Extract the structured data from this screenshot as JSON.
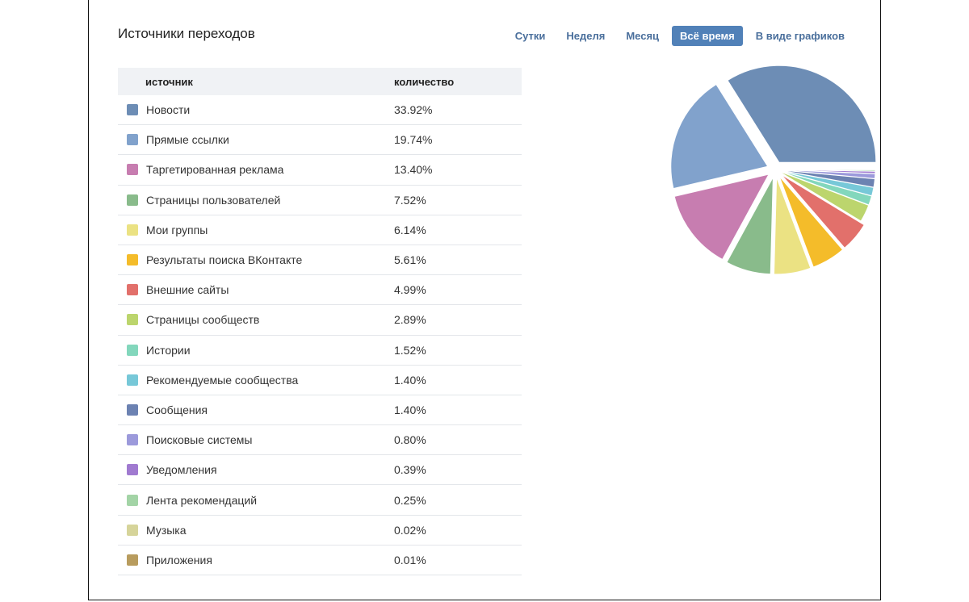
{
  "header": {
    "title": "Источники переходов"
  },
  "periods": [
    {
      "label": "Сутки",
      "active": false
    },
    {
      "label": "Неделя",
      "active": false
    },
    {
      "label": "Месяц",
      "active": false
    },
    {
      "label": "Всё время",
      "active": true
    },
    {
      "label": "В виде графиков",
      "active": false
    }
  ],
  "table": {
    "columns": [
      "источник",
      "количество"
    ],
    "rows": [
      {
        "name": "Новости",
        "value": "33.92%",
        "color": "#6d8db5"
      },
      {
        "name": "Прямые ссылки",
        "value": "19.74%",
        "color": "#81a2cc"
      },
      {
        "name": "Таргетированная реклама",
        "value": "13.40%",
        "color": "#c77db0"
      },
      {
        "name": "Страницы пользователей",
        "value": "7.52%",
        "color": "#89bb8b"
      },
      {
        "name": "Мои группы",
        "value": "6.14%",
        "color": "#ebe283"
      },
      {
        "name": "Результаты поиска ВКонтакте",
        "value": "5.61%",
        "color": "#f4bc2a"
      },
      {
        "name": "Внешние сайты",
        "value": "4.99%",
        "color": "#e2706b"
      },
      {
        "name": "Страницы сообществ",
        "value": "2.89%",
        "color": "#bcd56d"
      },
      {
        "name": "Истории",
        "value": "1.52%",
        "color": "#83d7bc"
      },
      {
        "name": "Рекомендуемые сообщества",
        "value": "1.40%",
        "color": "#77c8d8"
      },
      {
        "name": "Сообщения",
        "value": "1.40%",
        "color": "#6c82b2"
      },
      {
        "name": "Поисковые системы",
        "value": "0.80%",
        "color": "#9c9adb"
      },
      {
        "name": "Уведомления",
        "value": "0.39%",
        "color": "#a07ad0"
      },
      {
        "name": "Лента рекомендаций",
        "value": "0.25%",
        "color": "#a3d4a6"
      },
      {
        "name": "Музыка",
        "value": "0.02%",
        "color": "#d6d49a"
      },
      {
        "name": "Приложения",
        "value": "0.01%",
        "color": "#b89c5e"
      }
    ]
  },
  "chart_data": {
    "type": "pie",
    "categories": [
      "Новости",
      "Прямые ссылки",
      "Таргетированная реклама",
      "Страницы пользователей",
      "Мои группы",
      "Результаты поиска ВКонтакте",
      "Внешние сайты",
      "Страницы сообществ",
      "Истории",
      "Рекомендуемые сообщества",
      "Сообщения",
      "Поисковые системы",
      "Уведомления",
      "Лента рекомендаций",
      "Музыка",
      "Приложения"
    ],
    "values": [
      33.92,
      19.74,
      13.4,
      7.52,
      6.14,
      5.61,
      4.99,
      2.89,
      1.52,
      1.4,
      1.4,
      0.8,
      0.39,
      0.25,
      0.02,
      0.01
    ],
    "colors": [
      "#6d8db5",
      "#81a2cc",
      "#c77db0",
      "#89bb8b",
      "#ebe283",
      "#f4bc2a",
      "#e2706b",
      "#bcd56d",
      "#83d7bc",
      "#77c8d8",
      "#6c82b2",
      "#9c9adb",
      "#a07ad0",
      "#a3d4a6",
      "#d6d49a",
      "#b89c5e"
    ]
  }
}
